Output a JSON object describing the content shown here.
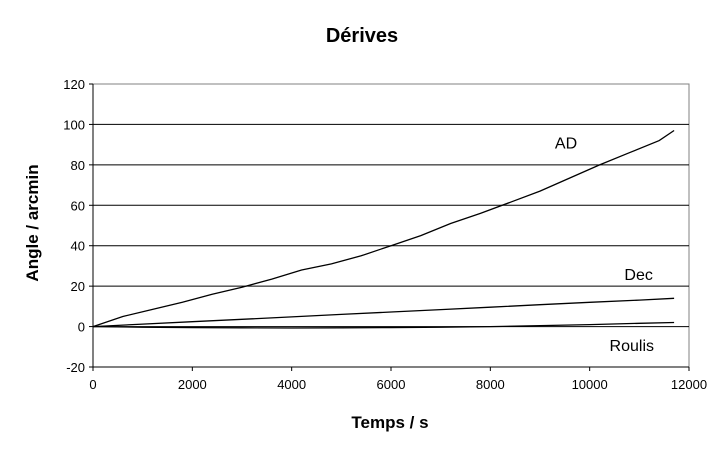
{
  "chart_data": {
    "type": "line",
    "title": "Dérives",
    "xlabel": "Temps / s",
    "ylabel": "Angle / arcmin",
    "xlim": [
      0,
      12000
    ],
    "ylim": [
      -20,
      120
    ],
    "x_ticks": [
      0,
      2000,
      4000,
      6000,
      8000,
      10000,
      12000
    ],
    "y_ticks": [
      -20,
      0,
      20,
      40,
      60,
      80,
      100,
      120
    ],
    "grid": "horizontal",
    "legend": "none",
    "series": [
      {
        "name": "AD",
        "color": "#000000",
        "x": [
          0,
          600,
          1200,
          1800,
          2400,
          3000,
          3600,
          4200,
          4800,
          5400,
          6000,
          6600,
          7200,
          7800,
          8400,
          9000,
          9600,
          10200,
          10800,
          11400,
          11700
        ],
        "y": [
          0,
          5,
          8.5,
          12,
          16,
          19.5,
          23.5,
          28,
          31,
          35,
          40,
          45,
          51,
          56,
          61.5,
          67,
          73.5,
          80,
          86,
          92,
          97
        ]
      },
      {
        "name": "Dec",
        "color": "#000000",
        "x": [
          0,
          1000,
          2000,
          3000,
          4000,
          5000,
          6000,
          7000,
          8000,
          9000,
          10000,
          11000,
          11700
        ],
        "y": [
          0,
          1.2,
          2.4,
          3.6,
          4.8,
          6,
          7.2,
          8.4,
          9.6,
          10.8,
          12,
          13.1,
          14
        ]
      },
      {
        "name": "Roulis",
        "color": "#000000",
        "x": [
          0,
          1000,
          2000,
          3000,
          4000,
          5000,
          6000,
          7000,
          8000,
          9000,
          10000,
          11000,
          11700
        ],
        "y": [
          0,
          -0.3,
          -0.5,
          -0.6,
          -0.7,
          -0.6,
          -0.5,
          -0.3,
          0,
          0.5,
          1,
          1.6,
          2
        ]
      }
    ],
    "labels": [
      "AD",
      "Dec",
      "Roulis"
    ]
  }
}
